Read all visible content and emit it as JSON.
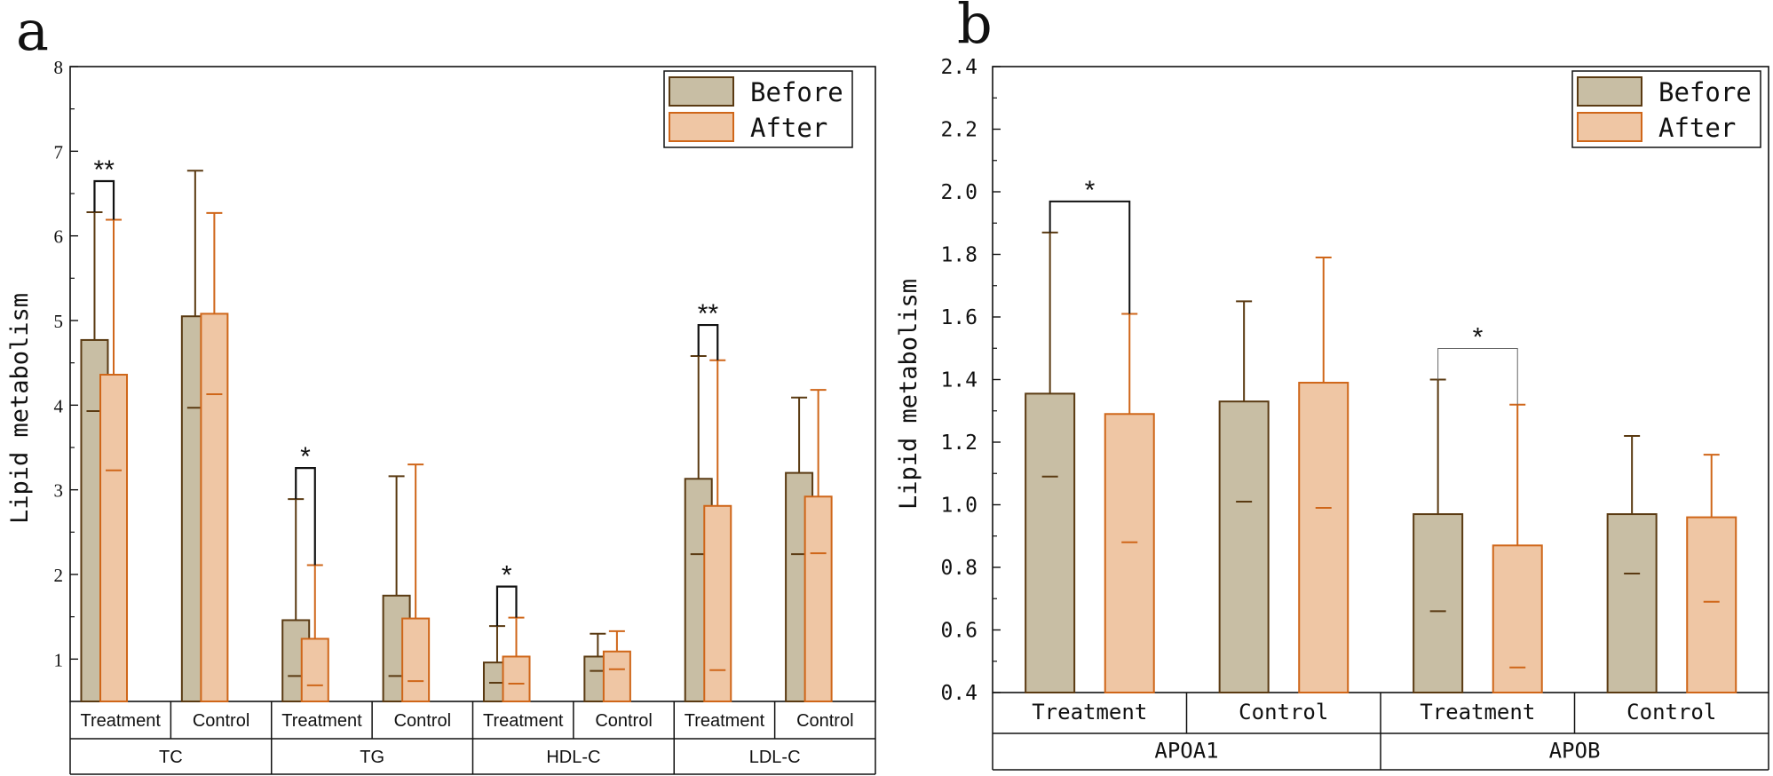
{
  "colors": {
    "before_fill": "#c8bea4",
    "before_stroke": "#5a3a12",
    "after_fill": "#efc6a4",
    "after_stroke": "#cf6619",
    "axis": "#111111"
  },
  "chart_data": [
    {
      "panel": "a",
      "type": "bar",
      "ylabel": "Lipid metabolism",
      "ylim": [
        0.5,
        8
      ],
      "yticks": [
        1,
        2,
        3,
        4,
        5,
        6,
        7,
        8
      ],
      "legend": [
        "Before",
        "After"
      ],
      "legend_position": "top-right",
      "groups": [
        {
          "label": "TC",
          "categories": [
            {
              "label": "Treatment",
              "before": 4.77,
              "before_err": [
                3.93,
                6.28
              ],
              "after": 4.36,
              "after_err": [
                3.23,
                6.19
              ],
              "sig": "**"
            },
            {
              "label": "Control",
              "before": 5.05,
              "before_err": [
                3.97,
                6.77
              ],
              "after": 5.08,
              "after_err": [
                4.13,
                6.27
              ],
              "sig": ""
            }
          ]
        },
        {
          "label": "TG",
          "categories": [
            {
              "label": "Treatment",
              "before": 1.46,
              "before_err": [
                0.8,
                2.89
              ],
              "after": 1.24,
              "after_err": [
                0.69,
                2.11
              ],
              "sig": "*"
            },
            {
              "label": "Control",
              "before": 1.75,
              "before_err": [
                0.8,
                3.16
              ],
              "after": 1.48,
              "after_err": [
                0.74,
                3.3
              ],
              "sig": ""
            }
          ]
        },
        {
          "label": "HDL-C",
          "categories": [
            {
              "label": "Treatment",
              "before": 0.96,
              "before_err": [
                0.72,
                1.39
              ],
              "after": 1.03,
              "after_err": [
                0.71,
                1.49
              ],
              "sig": "*"
            },
            {
              "label": "Control",
              "before": 1.03,
              "before_err": [
                0.86,
                1.3
              ],
              "after": 1.09,
              "after_err": [
                0.88,
                1.33
              ],
              "sig": ""
            }
          ]
        },
        {
          "label": "LDL-C",
          "categories": [
            {
              "label": "Treatment",
              "before": 3.13,
              "before_err": [
                2.24,
                4.58
              ],
              "after": 2.81,
              "after_err": [
                0.87,
                4.53
              ],
              "sig": "**"
            },
            {
              "label": "Control",
              "before": 3.2,
              "before_err": [
                2.24,
                4.09
              ],
              "after": 2.92,
              "after_err": [
                2.25,
                4.18
              ],
              "sig": ""
            }
          ]
        }
      ]
    },
    {
      "panel": "b",
      "type": "bar",
      "ylabel": "Lipid metabolism",
      "ylim": [
        0.4,
        2.4
      ],
      "yticks": [
        "0.4",
        "0.6",
        "0.8",
        "1.0",
        "1.2",
        "1.4",
        "1.6",
        "1.8",
        "2.0",
        "2.2",
        "2.4"
      ],
      "legend": [
        "Before",
        "After"
      ],
      "legend_position": "top-right",
      "groups": [
        {
          "label": "APOA1",
          "categories": [
            {
              "label": "Treatment",
              "before": 1.355,
              "before_err": [
                1.09,
                1.87
              ],
              "after": 1.29,
              "after_err": [
                0.88,
                1.61
              ],
              "sig": "*"
            },
            {
              "label": "Control",
              "before": 1.33,
              "before_err": [
                1.01,
                1.65
              ],
              "after": 1.39,
              "after_err": [
                0.99,
                1.79
              ],
              "sig": ""
            }
          ]
        },
        {
          "label": "APOB",
          "categories": [
            {
              "label": "Treatment",
              "before": 0.97,
              "before_err": [
                0.66,
                1.4
              ],
              "after": 0.87,
              "after_err": [
                0.48,
                1.32
              ],
              "sig": "*"
            },
            {
              "label": "Control",
              "before": 0.97,
              "before_err": [
                0.78,
                1.22
              ],
              "after": 0.96,
              "after_err": [
                0.69,
                1.16
              ],
              "sig": ""
            }
          ]
        }
      ]
    }
  ]
}
